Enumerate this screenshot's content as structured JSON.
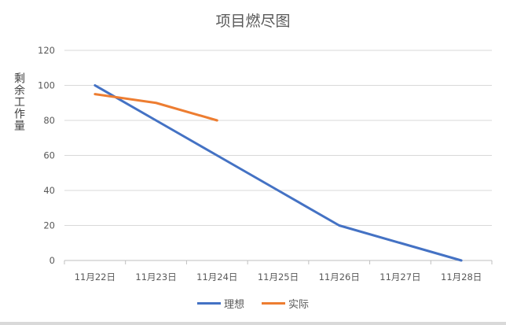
{
  "chart_data": {
    "type": "line",
    "title": "项目燃尽图",
    "ylabel": "剩余工作量",
    "xlabel": "",
    "categories": [
      "11月22日",
      "11月23日",
      "11月24日",
      "11月25日",
      "11月26日",
      "11月27日",
      "11月28日"
    ],
    "ylim": [
      0,
      120
    ],
    "yticks": [
      0,
      20,
      40,
      60,
      80,
      100,
      120
    ],
    "grid": true,
    "legend_position": "bottom",
    "series": [
      {
        "name": "理想",
        "color": "#4472c4",
        "values": [
          100,
          80,
          60,
          40,
          20,
          10,
          0
        ]
      },
      {
        "name": "实际",
        "color": "#ed7d31",
        "values": [
          95,
          90,
          80,
          null,
          null,
          null,
          null
        ]
      }
    ]
  }
}
